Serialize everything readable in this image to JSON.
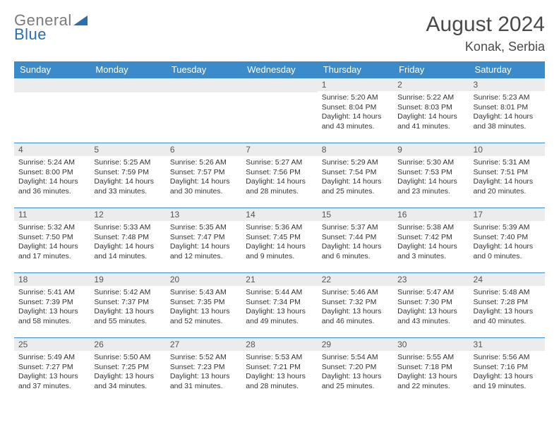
{
  "logo": {
    "line1": "General",
    "line2": "Blue"
  },
  "title": "August 2024",
  "location": "Konak, Serbia",
  "colors": {
    "header_bg": "#3b8bca",
    "header_fg": "#ffffff",
    "daynum_bg": "#ececec",
    "row_divider": "#3b8bca",
    "text": "#333333",
    "logo_gray": "#7b7b7b",
    "logo_blue": "#2a6db3"
  },
  "weekdays": [
    "Sunday",
    "Monday",
    "Tuesday",
    "Wednesday",
    "Thursday",
    "Friday",
    "Saturday"
  ],
  "weeks": [
    [
      {
        "n": "",
        "sr": "",
        "ss": "",
        "dl": ""
      },
      {
        "n": "",
        "sr": "",
        "ss": "",
        "dl": ""
      },
      {
        "n": "",
        "sr": "",
        "ss": "",
        "dl": ""
      },
      {
        "n": "",
        "sr": "",
        "ss": "",
        "dl": ""
      },
      {
        "n": "1",
        "sr": "Sunrise: 5:20 AM",
        "ss": "Sunset: 8:04 PM",
        "dl": "Daylight: 14 hours and 43 minutes."
      },
      {
        "n": "2",
        "sr": "Sunrise: 5:22 AM",
        "ss": "Sunset: 8:03 PM",
        "dl": "Daylight: 14 hours and 41 minutes."
      },
      {
        "n": "3",
        "sr": "Sunrise: 5:23 AM",
        "ss": "Sunset: 8:01 PM",
        "dl": "Daylight: 14 hours and 38 minutes."
      }
    ],
    [
      {
        "n": "4",
        "sr": "Sunrise: 5:24 AM",
        "ss": "Sunset: 8:00 PM",
        "dl": "Daylight: 14 hours and 36 minutes."
      },
      {
        "n": "5",
        "sr": "Sunrise: 5:25 AM",
        "ss": "Sunset: 7:59 PM",
        "dl": "Daylight: 14 hours and 33 minutes."
      },
      {
        "n": "6",
        "sr": "Sunrise: 5:26 AM",
        "ss": "Sunset: 7:57 PM",
        "dl": "Daylight: 14 hours and 30 minutes."
      },
      {
        "n": "7",
        "sr": "Sunrise: 5:27 AM",
        "ss": "Sunset: 7:56 PM",
        "dl": "Daylight: 14 hours and 28 minutes."
      },
      {
        "n": "8",
        "sr": "Sunrise: 5:29 AM",
        "ss": "Sunset: 7:54 PM",
        "dl": "Daylight: 14 hours and 25 minutes."
      },
      {
        "n": "9",
        "sr": "Sunrise: 5:30 AM",
        "ss": "Sunset: 7:53 PM",
        "dl": "Daylight: 14 hours and 23 minutes."
      },
      {
        "n": "10",
        "sr": "Sunrise: 5:31 AM",
        "ss": "Sunset: 7:51 PM",
        "dl": "Daylight: 14 hours and 20 minutes."
      }
    ],
    [
      {
        "n": "11",
        "sr": "Sunrise: 5:32 AM",
        "ss": "Sunset: 7:50 PM",
        "dl": "Daylight: 14 hours and 17 minutes."
      },
      {
        "n": "12",
        "sr": "Sunrise: 5:33 AM",
        "ss": "Sunset: 7:48 PM",
        "dl": "Daylight: 14 hours and 14 minutes."
      },
      {
        "n": "13",
        "sr": "Sunrise: 5:35 AM",
        "ss": "Sunset: 7:47 PM",
        "dl": "Daylight: 14 hours and 12 minutes."
      },
      {
        "n": "14",
        "sr": "Sunrise: 5:36 AM",
        "ss": "Sunset: 7:45 PM",
        "dl": "Daylight: 14 hours and 9 minutes."
      },
      {
        "n": "15",
        "sr": "Sunrise: 5:37 AM",
        "ss": "Sunset: 7:44 PM",
        "dl": "Daylight: 14 hours and 6 minutes."
      },
      {
        "n": "16",
        "sr": "Sunrise: 5:38 AM",
        "ss": "Sunset: 7:42 PM",
        "dl": "Daylight: 14 hours and 3 minutes."
      },
      {
        "n": "17",
        "sr": "Sunrise: 5:39 AM",
        "ss": "Sunset: 7:40 PM",
        "dl": "Daylight: 14 hours and 0 minutes."
      }
    ],
    [
      {
        "n": "18",
        "sr": "Sunrise: 5:41 AM",
        "ss": "Sunset: 7:39 PM",
        "dl": "Daylight: 13 hours and 58 minutes."
      },
      {
        "n": "19",
        "sr": "Sunrise: 5:42 AM",
        "ss": "Sunset: 7:37 PM",
        "dl": "Daylight: 13 hours and 55 minutes."
      },
      {
        "n": "20",
        "sr": "Sunrise: 5:43 AM",
        "ss": "Sunset: 7:35 PM",
        "dl": "Daylight: 13 hours and 52 minutes."
      },
      {
        "n": "21",
        "sr": "Sunrise: 5:44 AM",
        "ss": "Sunset: 7:34 PM",
        "dl": "Daylight: 13 hours and 49 minutes."
      },
      {
        "n": "22",
        "sr": "Sunrise: 5:46 AM",
        "ss": "Sunset: 7:32 PM",
        "dl": "Daylight: 13 hours and 46 minutes."
      },
      {
        "n": "23",
        "sr": "Sunrise: 5:47 AM",
        "ss": "Sunset: 7:30 PM",
        "dl": "Daylight: 13 hours and 43 minutes."
      },
      {
        "n": "24",
        "sr": "Sunrise: 5:48 AM",
        "ss": "Sunset: 7:28 PM",
        "dl": "Daylight: 13 hours and 40 minutes."
      }
    ],
    [
      {
        "n": "25",
        "sr": "Sunrise: 5:49 AM",
        "ss": "Sunset: 7:27 PM",
        "dl": "Daylight: 13 hours and 37 minutes."
      },
      {
        "n": "26",
        "sr": "Sunrise: 5:50 AM",
        "ss": "Sunset: 7:25 PM",
        "dl": "Daylight: 13 hours and 34 minutes."
      },
      {
        "n": "27",
        "sr": "Sunrise: 5:52 AM",
        "ss": "Sunset: 7:23 PM",
        "dl": "Daylight: 13 hours and 31 minutes."
      },
      {
        "n": "28",
        "sr": "Sunrise: 5:53 AM",
        "ss": "Sunset: 7:21 PM",
        "dl": "Daylight: 13 hours and 28 minutes."
      },
      {
        "n": "29",
        "sr": "Sunrise: 5:54 AM",
        "ss": "Sunset: 7:20 PM",
        "dl": "Daylight: 13 hours and 25 minutes."
      },
      {
        "n": "30",
        "sr": "Sunrise: 5:55 AM",
        "ss": "Sunset: 7:18 PM",
        "dl": "Daylight: 13 hours and 22 minutes."
      },
      {
        "n": "31",
        "sr": "Sunrise: 5:56 AM",
        "ss": "Sunset: 7:16 PM",
        "dl": "Daylight: 13 hours and 19 minutes."
      }
    ]
  ]
}
